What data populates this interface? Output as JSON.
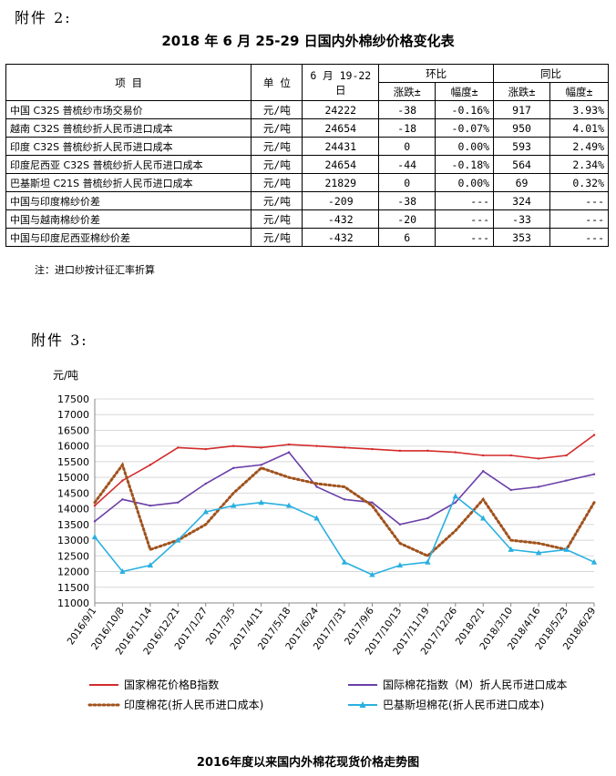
{
  "attachment2_label": "附件 2:",
  "attachment3_label": "附件 3:",
  "table": {
    "title": "2018 年 6 月 25-29 日国内外棉纱价格变化表",
    "headers": {
      "item": "项 目",
      "unit": "单 位",
      "period": "6 月 19-22 日",
      "mom": "环比",
      "yoy": "同比",
      "change": "涨跌±",
      "pct": "幅度±"
    },
    "rows": [
      {
        "item": "中国 C32S 普梳纱市场交易价",
        "unit": "元/吨",
        "price": "24222",
        "mom_change": "-38",
        "mom_pct": "-0.16%",
        "yoy_change": "917",
        "yoy_pct": "3.93%"
      },
      {
        "item": "越南 C32S 普梳纱折人民币进口成本",
        "unit": "元/吨",
        "price": "24654",
        "mom_change": "-18",
        "mom_pct": "-0.07%",
        "yoy_change": "950",
        "yoy_pct": "4.01%"
      },
      {
        "item": "印度 C32S 普梳纱折人民币进口成本",
        "unit": "元/吨",
        "price": "24431",
        "mom_change": "0",
        "mom_pct": "0.00%",
        "yoy_change": "593",
        "yoy_pct": "2.49%"
      },
      {
        "item": "印度尼西亚 C32S 普梳纱折人民币进口成本",
        "unit": "元/吨",
        "price": "24654",
        "mom_change": "-44",
        "mom_pct": "-0.18%",
        "yoy_change": "564",
        "yoy_pct": "2.34%"
      },
      {
        "item": "巴基斯坦 C21S 普梳纱折人民币进口成本",
        "unit": "元/吨",
        "price": "21829",
        "mom_change": "0",
        "mom_pct": "0.00%",
        "yoy_change": "69",
        "yoy_pct": "0.32%"
      },
      {
        "item": "中国与印度棉纱价差",
        "unit": "元/吨",
        "price": "-209",
        "mom_change": "-38",
        "mom_pct": "---",
        "yoy_change": "324",
        "yoy_pct": "---"
      },
      {
        "item": "中国与越南棉纱价差",
        "unit": "元/吨",
        "price": "-432",
        "mom_change": "-20",
        "mom_pct": "---",
        "yoy_change": "-33",
        "yoy_pct": "---"
      },
      {
        "item": "中国与印度尼西亚棉纱价差",
        "unit": "元/吨",
        "price": "-432",
        "mom_change": "6",
        "mom_pct": "---",
        "yoy_change": "353",
        "yoy_pct": "---"
      }
    ],
    "note": "注：进口纱按计征汇率折算"
  },
  "chart_data": {
    "type": "line",
    "title": "2016年度以来国内外棉花现货价格走势图",
    "ylabel": "元/吨",
    "ylim": [
      11000,
      17500
    ],
    "yticks": [
      11000,
      11500,
      12000,
      12500,
      13000,
      13500,
      14000,
      14500,
      15000,
      15500,
      16000,
      16500,
      17000,
      17500
    ],
    "grid": true,
    "legend_position": "bottom",
    "x": [
      "2016/9/1",
      "2016/10/8",
      "2016/11/14",
      "2016/12/21",
      "2017/1/27",
      "2017/3/5",
      "2017/4/11",
      "2017/5/18",
      "2017/6/24",
      "2017/7/31",
      "2017/9/6",
      "2017/10/13",
      "2017/11/19",
      "2017/12/26",
      "2018/2/1",
      "2018/3/10",
      "2018/4/16",
      "2018/5/23",
      "2018/6/29"
    ],
    "series": [
      {
        "name": "国家棉花价格B指数",
        "color": "#d42a2a",
        "style": "solid",
        "values": [
          14100,
          14900,
          15400,
          15950,
          15900,
          16000,
          15950,
          16050,
          16000,
          15950,
          15900,
          15850,
          15850,
          15800,
          15700,
          15700,
          15600,
          15700,
          16350
        ]
      },
      {
        "name": "国际棉花指数（M）折人民币进口成本",
        "color": "#6a3fa8",
        "style": "solid",
        "values": [
          13600,
          14300,
          14100,
          14200,
          14800,
          15300,
          15400,
          15800,
          14700,
          14300,
          14200,
          13500,
          13700,
          14200,
          15200,
          14600,
          14700,
          14900,
          15100
        ]
      },
      {
        "name": "印度棉花(折人民币进口成本)",
        "color": "#a0521d",
        "style": "dotted",
        "values": [
          14200,
          15400,
          12700,
          13000,
          13500,
          14500,
          15300,
          15000,
          14800,
          14700,
          14100,
          12900,
          12500,
          13300,
          14300,
          13000,
          12900,
          12700,
          14200
        ]
      },
      {
        "name": "巴基斯坦棉花(折人民币进口成本)",
        "color": "#2ab0e0",
        "style": "solid-marker",
        "values": [
          13100,
          12000,
          12200,
          13000,
          13900,
          14100,
          14200,
          14100,
          13700,
          12300,
          11900,
          12200,
          12300,
          14400,
          13700,
          12700,
          12600,
          12700,
          12300
        ]
      }
    ]
  }
}
